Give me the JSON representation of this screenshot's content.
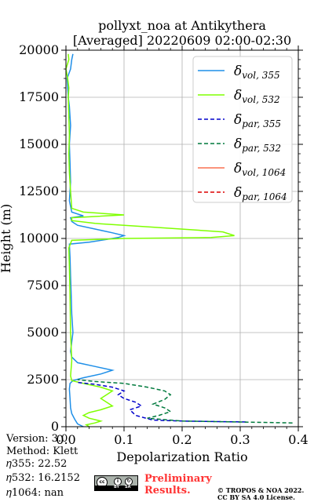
{
  "chart_data": {
    "type": "line",
    "title_line1": "pollyxt_noa at Antikythera",
    "title_line2": "[Averaged] 20220609 02:00-02:30",
    "xlabel": "Depolarization Ratio",
    "ylabel": "Height (m)",
    "xlim": [
      0,
      0.4
    ],
    "ylim": [
      0,
      20000
    ],
    "x_ticks": [
      0.0,
      0.1,
      0.2,
      0.3,
      0.4
    ],
    "x_tick_labels": [
      "0.0",
      "0.1",
      "0.2",
      "0.3",
      "0.4"
    ],
    "y_ticks": [
      0,
      2500,
      5000,
      7500,
      10000,
      12500,
      15000,
      17500,
      20000
    ],
    "y_tick_labels": [
      "0",
      "2500",
      "5000",
      "7500",
      "10000",
      "12500",
      "15000",
      "17500",
      "20000"
    ],
    "grid": true,
    "legend_placement": "top-right",
    "series": [
      {
        "name_base": "δ",
        "name_sub": "vol, 355",
        "color": "#1f8fe8",
        "dash": "solid",
        "points": [
          [
            0.03,
            0
          ],
          [
            0.02,
            150
          ],
          [
            0.015,
            400
          ],
          [
            0.01,
            700
          ],
          [
            0.008,
            1000
          ],
          [
            0.007,
            1500
          ],
          [
            0.006,
            2000
          ],
          [
            0.007,
            2300
          ],
          [
            0.012,
            2450
          ],
          [
            0.03,
            2600
          ],
          [
            0.06,
            2800
          ],
          [
            0.08,
            3000
          ],
          [
            0.05,
            3200
          ],
          [
            0.02,
            3400
          ],
          [
            0.01,
            3700
          ],
          [
            0.008,
            4000
          ],
          [
            0.01,
            4500
          ],
          [
            0.012,
            5000
          ],
          [
            0.01,
            6000
          ],
          [
            0.009,
            7000
          ],
          [
            0.008,
            8000
          ],
          [
            0.007,
            9000
          ],
          [
            0.006,
            9700
          ],
          [
            0.04,
            9800
          ],
          [
            0.07,
            9950
          ],
          [
            0.09,
            10050
          ],
          [
            0.1,
            10150
          ],
          [
            0.08,
            10300
          ],
          [
            0.05,
            10500
          ],
          [
            0.02,
            10700
          ],
          [
            0.01,
            10900
          ],
          [
            0.008,
            11100
          ],
          [
            0.03,
            11200
          ],
          [
            0.01,
            11400
          ],
          [
            0.006,
            12000
          ],
          [
            0.008,
            13000
          ],
          [
            0.007,
            14000
          ],
          [
            0.006,
            15000
          ],
          [
            0.008,
            16000
          ],
          [
            0.006,
            17000
          ],
          [
            0.004,
            17500
          ],
          [
            0.002,
            18500
          ],
          [
            0.008,
            19000
          ],
          [
            0.01,
            19500
          ],
          [
            0.012,
            19800
          ]
        ]
      },
      {
        "name_base": "δ",
        "name_sub": "vol, 532",
        "color": "#7fff00",
        "dash": "solid",
        "points": [
          [
            0.04,
            0
          ],
          [
            0.035,
            100
          ],
          [
            0.05,
            200
          ],
          [
            0.06,
            300
          ],
          [
            0.04,
            450
          ],
          [
            0.03,
            600
          ],
          [
            0.04,
            750
          ],
          [
            0.06,
            900
          ],
          [
            0.08,
            1100
          ],
          [
            0.07,
            1300
          ],
          [
            0.06,
            1500
          ],
          [
            0.07,
            1700
          ],
          [
            0.08,
            1900
          ],
          [
            0.06,
            2100
          ],
          [
            0.03,
            2300
          ],
          [
            0.01,
            2450
          ],
          [
            0.008,
            2700
          ],
          [
            0.01,
            3500
          ],
          [
            0.008,
            5000
          ],
          [
            0.007,
            7000
          ],
          [
            0.006,
            8500
          ],
          [
            0.005,
            9500
          ],
          [
            0.01,
            9900
          ],
          [
            0.1,
            10000
          ],
          [
            0.25,
            10050
          ],
          [
            0.29,
            10150
          ],
          [
            0.27,
            10350
          ],
          [
            0.15,
            10600
          ],
          [
            0.05,
            10800
          ],
          [
            0.01,
            10950
          ],
          [
            0.01,
            11100
          ],
          [
            0.1,
            11250
          ],
          [
            0.03,
            11400
          ],
          [
            0.01,
            11600
          ],
          [
            0.008,
            12500
          ],
          [
            0.006,
            13500
          ],
          [
            0.005,
            14500
          ],
          [
            0.006,
            15500
          ],
          [
            0.005,
            16500
          ],
          [
            0.004,
            17500
          ],
          [
            0.005,
            18000
          ],
          [
            0.003,
            18500
          ],
          [
            0.0,
            19000
          ],
          [
            0.005,
            19500
          ],
          [
            0.004,
            19800
          ]
        ]
      },
      {
        "name_base": "δ",
        "name_sub": "par, 355",
        "color": "#0000cc",
        "dash": "dashed",
        "points": [
          [
            0.31,
            250
          ],
          [
            0.2,
            300
          ],
          [
            0.15,
            350
          ],
          [
            0.12,
            600
          ],
          [
            0.11,
            900
          ],
          [
            0.13,
            1100
          ],
          [
            0.12,
            1300
          ],
          [
            0.1,
            1500
          ],
          [
            0.09,
            1700
          ],
          [
            0.1,
            1900
          ],
          [
            0.08,
            2100
          ],
          [
            0.05,
            2250
          ],
          [
            0.02,
            2350
          ]
        ]
      },
      {
        "name_base": "δ",
        "name_sub": "par, 532",
        "color": "#007a3d",
        "dash": "dashed",
        "points": [
          [
            0.39,
            200
          ],
          [
            0.3,
            250
          ],
          [
            0.2,
            300
          ],
          [
            0.14,
            450
          ],
          [
            0.16,
            600
          ],
          [
            0.18,
            800
          ],
          [
            0.17,
            1000
          ],
          [
            0.15,
            1200
          ],
          [
            0.17,
            1450
          ],
          [
            0.18,
            1700
          ],
          [
            0.17,
            1900
          ],
          [
            0.14,
            2100
          ],
          [
            0.1,
            2300
          ],
          [
            0.05,
            2400
          ],
          [
            0.02,
            2500
          ]
        ]
      },
      {
        "name_base": "δ",
        "name_sub": "vol, 1064",
        "color": "#fa7050",
        "dash": "solid",
        "points": []
      },
      {
        "name_base": "δ",
        "name_sub": "par, 1064",
        "color": "#dd0000",
        "dash": "dashed",
        "points": []
      }
    ]
  },
  "footer": {
    "version": "Version: 3.0",
    "method": "Method: Klett",
    "eta355": "𝜂355:  22.52",
    "eta532": "𝜂532: 16.2152",
    "eta1064": "𝜂1064:    nan",
    "preliminary_line1": "Preliminary",
    "preliminary_line2": "Results.",
    "copyright_line1": "© TROPOS & NOA 2022.",
    "copyright_line2": "CC BY SA 4.0 License.",
    "license_badge_cc": "cc",
    "license_badge_by": "BY",
    "license_badge_sa": "SA"
  }
}
